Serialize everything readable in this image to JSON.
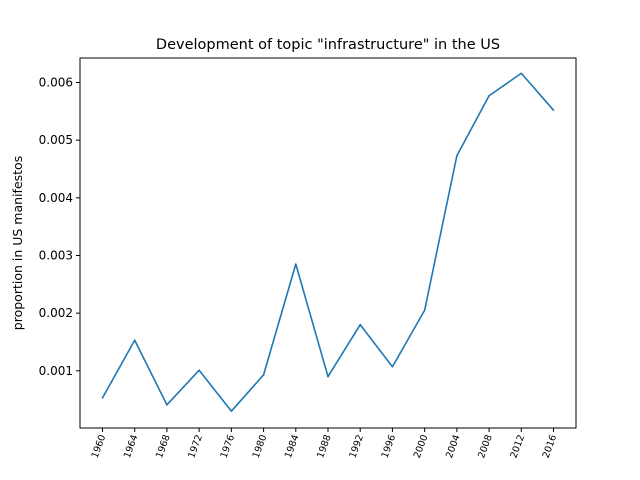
{
  "chart_data": {
    "type": "line",
    "title": "Development of topic \"infrastructure\" in the US",
    "xlabel": "",
    "ylabel": "proportion in US manifestos",
    "x": [
      "1960",
      "1964",
      "1968",
      "1972",
      "1976",
      "1980",
      "1984",
      "1988",
      "1992",
      "1996",
      "2000",
      "2004",
      "2008",
      "2012",
      "2016"
    ],
    "series": [
      {
        "values": [
          0.00053,
          0.00153,
          0.00041,
          0.00101,
          0.0003,
          0.00093,
          0.00285,
          0.0009,
          0.0018,
          0.00107,
          0.00205,
          0.00473,
          0.00577,
          0.00616,
          0.00552
        ],
        "color": "#1f77b4"
      }
    ],
    "yticks": [
      0.001,
      0.002,
      0.003,
      0.004,
      0.005,
      0.006
    ],
    "ytick_labels": [
      "0.001",
      "0.002",
      "0.003",
      "0.004",
      "0.005",
      "0.006"
    ],
    "ylim": [
      8e-06,
      0.006425
    ],
    "grid": false
  }
}
